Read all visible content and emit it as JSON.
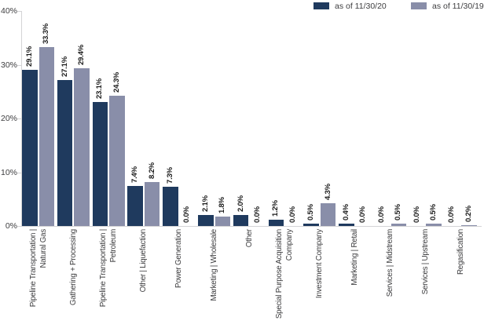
{
  "chart_data": {
    "type": "bar",
    "title": "",
    "xlabel": "",
    "ylabel": "",
    "ylim": [
      0,
      40
    ],
    "grid": false,
    "legend_position": "top-right",
    "value_label_format": "{value}%",
    "yticks": [
      {
        "value": 0,
        "label": "0%"
      },
      {
        "value": 10,
        "label": "10%"
      },
      {
        "value": 20,
        "label": "20%"
      },
      {
        "value": 30,
        "label": "30%"
      },
      {
        "value": 40,
        "label": "40%"
      }
    ],
    "categories": [
      "Pipeline Transportation |\nNatural Gas",
      "Gathering + Processing",
      "Pipeline Transportation |\nPetroleum",
      "Other | Liquefaction",
      "Power Generation",
      "Marketing | Wholesale",
      "Other",
      "Special Purpose Acquisition\nCompany",
      "Investment Company",
      "Marketing | Retail",
      "Services | Midstream",
      "Services | Upstream",
      "Regasification"
    ],
    "series": [
      {
        "name": "as of 11/30/20",
        "color": "#1f3a5e",
        "values": [
          29.1,
          27.1,
          23.1,
          7.4,
          7.3,
          2.1,
          2.0,
          1.2,
          0.5,
          0.4,
          0.0,
          0.0,
          0.0
        ]
      },
      {
        "name": "as of 11/30/19",
        "color": "#898ea9",
        "values": [
          33.3,
          29.4,
          24.3,
          8.2,
          0.0,
          1.8,
          0.0,
          0.0,
          4.3,
          0.0,
          0.5,
          0.5,
          0.2
        ]
      }
    ]
  },
  "colors": {
    "axis_line": "#d4d4d6",
    "tick_mark": "#d4d4d6",
    "value_label_text": "#1a1a1a",
    "axis_label_text": "#3d3d3f",
    "background": "#ffffff"
  }
}
